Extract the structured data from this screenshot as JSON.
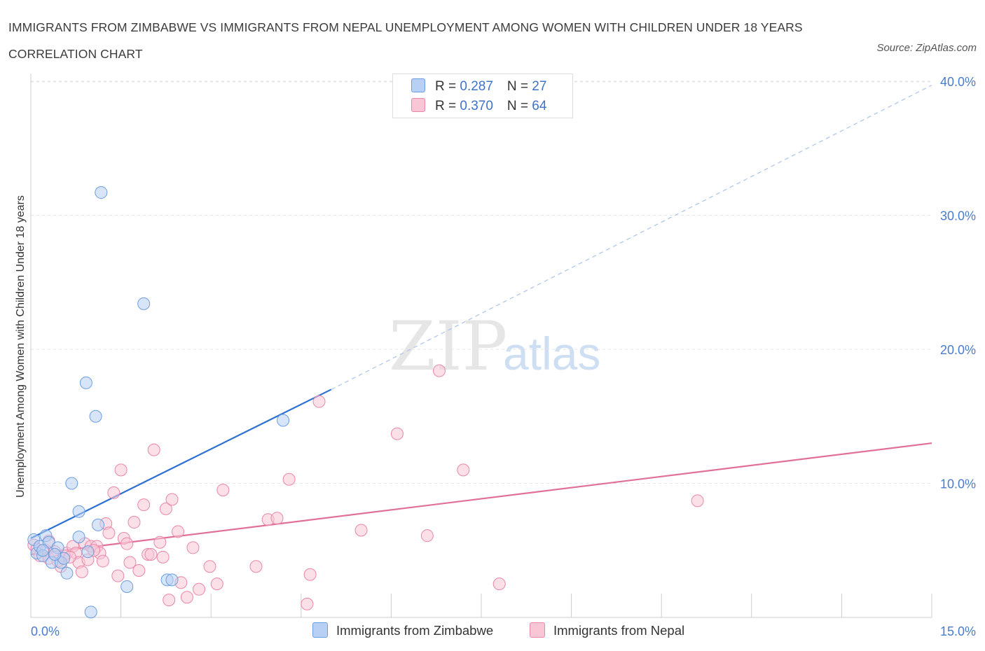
{
  "title": "IMMIGRANTS FROM ZIMBABWE VS IMMIGRANTS FROM NEPAL UNEMPLOYMENT AMONG WOMEN WITH CHILDREN UNDER 18 YEARS CORRELATION CHART",
  "source": "Source: ZipAtlas.com",
  "watermark": {
    "zip": "ZIP",
    "atlas": "atlas"
  },
  "legend_top": {
    "rows": [
      {
        "r_label": "R = ",
        "r_value": "0.287",
        "n_label": "N = ",
        "n_value": "27"
      },
      {
        "r_label": "R = ",
        "r_value": "0.370",
        "n_label": "N = ",
        "n_value": "64"
      }
    ]
  },
  "legend_bottom": {
    "zimbabwe": "Immigrants from Zimbabwe",
    "nepal": "Immigrants from Nepal"
  },
  "chart_data": {
    "type": "scatter",
    "xlabel": "",
    "ylabel": "Unemployment Among Women with Children Under 18 years",
    "xlim": [
      0,
      15
    ],
    "ylim": [
      0,
      40
    ],
    "x_tick_labels": [
      "0.0%",
      "15.0%"
    ],
    "y_ticks": [
      10,
      20,
      30,
      40
    ],
    "y_tick_labels": [
      "10.0%",
      "20.0%",
      "30.0%",
      "40.0%"
    ],
    "grid": true,
    "legend_position": "top-center",
    "colors": {
      "zimbabwe_fill": "#b8d0f3",
      "zimbabwe_stroke": "#6b9ee0",
      "zimbabwe_line": "#2d72d2",
      "nepal_fill": "#f9c6d6",
      "nepal_stroke": "#e887a8",
      "nepal_line": "#e0709a",
      "tick_label": "#4a7ccc"
    },
    "series": [
      {
        "name": "Immigrants from Zimbabwe",
        "r": 0.287,
        "n": 27,
        "trend": {
          "x0": 0.0,
          "y0": 5.9,
          "x1": 5.0,
          "y1": 17.0,
          "dash_to_x": 15.0,
          "dash_to_y": 39.7
        },
        "points": [
          [
            0.05,
            5.8
          ],
          [
            0.1,
            4.8
          ],
          [
            0.15,
            5.3
          ],
          [
            0.2,
            4.6
          ],
          [
            0.25,
            6.1
          ],
          [
            0.3,
            5.6
          ],
          [
            0.35,
            4.1
          ],
          [
            0.45,
            5.2
          ],
          [
            0.5,
            4.1
          ],
          [
            0.55,
            4.4
          ],
          [
            0.6,
            3.3
          ],
          [
            0.68,
            10.0
          ],
          [
            0.8,
            7.9
          ],
          [
            0.8,
            6.0
          ],
          [
            0.92,
            17.5
          ],
          [
            0.95,
            4.9
          ],
          [
            1.0,
            0.4
          ],
          [
            1.08,
            15.0
          ],
          [
            1.12,
            6.9
          ],
          [
            1.17,
            31.7
          ],
          [
            1.6,
            2.3
          ],
          [
            1.88,
            23.4
          ],
          [
            2.27,
            2.8
          ],
          [
            2.35,
            2.8
          ],
          [
            4.2,
            14.7
          ],
          [
            0.2,
            5.0
          ],
          [
            0.4,
            4.7
          ]
        ]
      },
      {
        "name": "Immigrants from Nepal",
        "r": 0.37,
        "n": 64,
        "trend": {
          "x0": 0.0,
          "y0": 4.7,
          "x1": 15.0,
          "y1": 13.0
        },
        "points": [
          [
            0.05,
            5.4
          ],
          [
            0.1,
            5.1
          ],
          [
            0.15,
            4.6
          ],
          [
            0.25,
            5.0
          ],
          [
            0.3,
            4.4
          ],
          [
            0.4,
            4.9
          ],
          [
            0.5,
            3.8
          ],
          [
            0.55,
            4.6
          ],
          [
            0.6,
            4.8
          ],
          [
            0.7,
            5.3
          ],
          [
            0.75,
            4.8
          ],
          [
            0.8,
            4.1
          ],
          [
            0.85,
            3.4
          ],
          [
            0.9,
            5.5
          ],
          [
            0.95,
            4.3
          ],
          [
            1.0,
            5.3
          ],
          [
            1.1,
            5.3
          ],
          [
            1.15,
            4.8
          ],
          [
            1.2,
            4.2
          ],
          [
            1.25,
            7.0
          ],
          [
            1.3,
            6.3
          ],
          [
            1.38,
            9.3
          ],
          [
            1.45,
            3.1
          ],
          [
            1.5,
            11.0
          ],
          [
            1.55,
            5.9
          ],
          [
            1.6,
            5.5
          ],
          [
            1.65,
            4.1
          ],
          [
            1.72,
            7.1
          ],
          [
            1.8,
            3.5
          ],
          [
            1.88,
            8.4
          ],
          [
            1.95,
            4.7
          ],
          [
            2.0,
            4.7
          ],
          [
            2.05,
            12.5
          ],
          [
            2.15,
            5.6
          ],
          [
            2.2,
            4.5
          ],
          [
            2.25,
            8.1
          ],
          [
            2.3,
            1.3
          ],
          [
            2.35,
            8.8
          ],
          [
            2.45,
            6.4
          ],
          [
            2.5,
            2.6
          ],
          [
            2.6,
            1.5
          ],
          [
            2.7,
            5.2
          ],
          [
            2.8,
            2.1
          ],
          [
            2.98,
            3.8
          ],
          [
            3.1,
            2.5
          ],
          [
            3.2,
            9.5
          ],
          [
            3.75,
            3.8
          ],
          [
            3.95,
            7.3
          ],
          [
            4.1,
            7.4
          ],
          [
            4.3,
            10.3
          ],
          [
            4.6,
            1.0
          ],
          [
            4.65,
            3.2
          ],
          [
            4.8,
            16.1
          ],
          [
            5.5,
            6.5
          ],
          [
            6.1,
            13.7
          ],
          [
            6.6,
            6.1
          ],
          [
            6.8,
            18.4
          ],
          [
            7.2,
            11.0
          ],
          [
            7.8,
            2.5
          ],
          [
            11.1,
            8.7
          ],
          [
            0.3,
            5.7
          ],
          [
            0.65,
            4.5
          ],
          [
            1.05,
            5.0
          ],
          [
            0.45,
            4.2
          ]
        ]
      }
    ]
  }
}
